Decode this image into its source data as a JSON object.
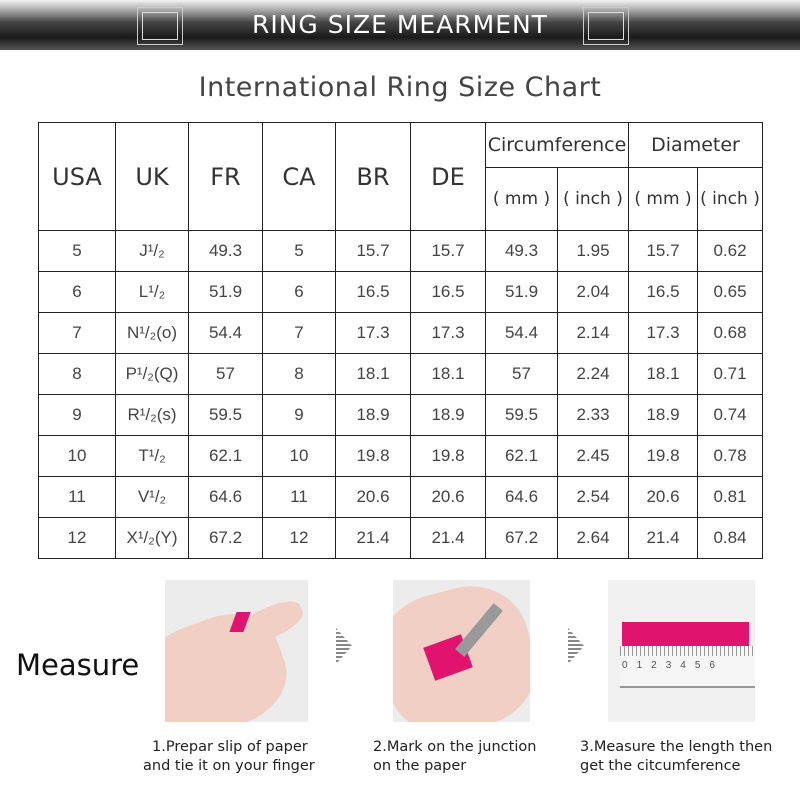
{
  "banner": {
    "title": "RING SIZE MEARMENT"
  },
  "subtitle": "International Ring Size Chart",
  "table": {
    "headers": [
      "USA",
      "UK",
      "FR",
      "CA",
      "BR",
      "DE",
      "Circumference",
      "Diameter"
    ],
    "units": [
      "( mm )",
      "( inch )",
      "( mm )",
      "( inch )"
    ],
    "rows": [
      [
        "5",
        "J¹/₂",
        "49.3",
        "5",
        "15.7",
        "15.7",
        "49.3",
        "1.95",
        "15.7",
        "0.62"
      ],
      [
        "6",
        "L¹/₂",
        "51.9",
        "6",
        "16.5",
        "16.5",
        "51.9",
        "2.04",
        "16.5",
        "0.65"
      ],
      [
        "7",
        "N¹/₂(o)",
        "54.4",
        "7",
        "17.3",
        "17.3",
        "54.4",
        "2.14",
        "17.3",
        "0.68"
      ],
      [
        "8",
        "P¹/₂(Q)",
        "57",
        "8",
        "18.1",
        "18.1",
        "57",
        "2.24",
        "18.1",
        "0.71"
      ],
      [
        "9",
        "R¹/₂(s)",
        "59.5",
        "9",
        "18.9",
        "18.9",
        "59.5",
        "2.33",
        "18.9",
        "0.74"
      ],
      [
        "10",
        "T¹/₂",
        "62.1",
        "10",
        "19.8",
        "19.8",
        "62.1",
        "2.45",
        "19.8",
        "0.78"
      ],
      [
        "11",
        "V¹/₂",
        "64.6",
        "11",
        "20.6",
        "20.6",
        "64.6",
        "2.54",
        "20.6",
        "0.81"
      ],
      [
        "12",
        "X¹/₂(Y)",
        "67.2",
        "12",
        "21.4",
        "21.4",
        "67.2",
        "2.64",
        "21.4",
        "0.84"
      ]
    ]
  },
  "measure": {
    "label": "Measure",
    "steps": [
      {
        "line1": "1.Prepar slip of paper",
        "line2": "and tie it on your finger"
      },
      {
        "line1": "2.Mark on the junction",
        "line2": "on the paper"
      },
      {
        "line1": "3.Measure the length then",
        "line2": "get the citcumference"
      }
    ],
    "ruler_ticks": [
      "0",
      "1",
      "2",
      "3",
      "4",
      "5",
      "6"
    ]
  },
  "colors": {
    "tape": "#e0136f",
    "banner": "#1a1a1a"
  }
}
